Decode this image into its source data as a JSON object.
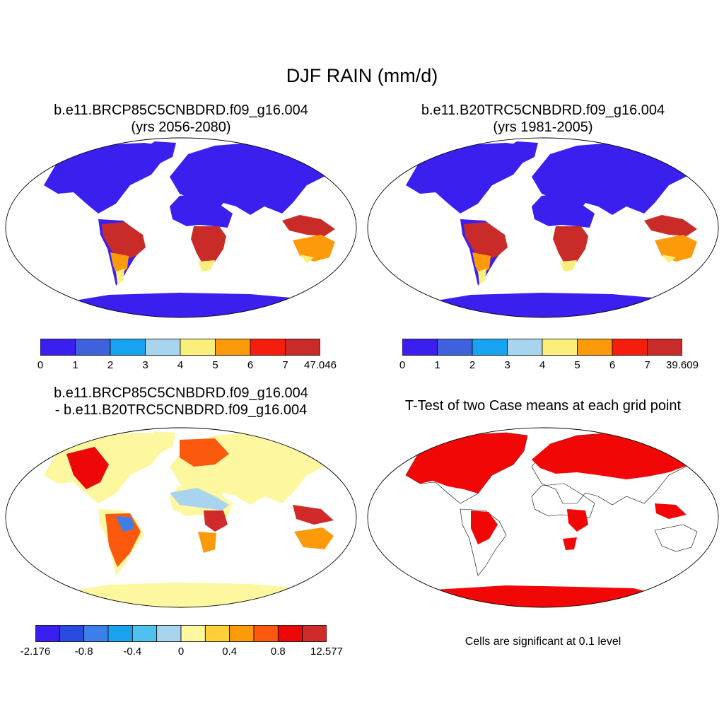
{
  "title": "DJF RAIN (mm/d)",
  "panels": [
    {
      "title_line1": "b.e11.BRCP85C5CNBDRD.f09_g16.004",
      "title_line2": "(yrs 2056-2080)",
      "colorbar": {
        "colors": [
          "#3b1fef",
          "#3f62dc",
          "#17a3ef",
          "#a8d4ee",
          "#fbef7b",
          "#fd9a0a",
          "#f71d0c",
          "#c92b28"
        ],
        "labels": [
          "0",
          "1",
          "2",
          "3",
          "4",
          "5",
          "6",
          "7",
          "47.046"
        ]
      }
    },
    {
      "title_line1": "b.e11.B20TRC5CNBDRD.f09_g16.004",
      "title_line2": "(yrs 1981-2005)",
      "colorbar": {
        "colors": [
          "#3b1fef",
          "#3f62dc",
          "#17a3ef",
          "#a8d4ee",
          "#fbef7b",
          "#fd9a0a",
          "#f71d0c",
          "#c92b28"
        ],
        "labels": [
          "0",
          "1",
          "2",
          "3",
          "4",
          "5",
          "6",
          "7",
          "39.609"
        ]
      }
    },
    {
      "title_line1": "b.e11.BRCP85C5CNBDRD.f09_g16.004",
      "title_line2": "- b.e11.B20TRC5CNBDRD.f09_g16.004",
      "colorbar": {
        "colors": [
          "#3b1fef",
          "#2a4be0",
          "#3d7fea",
          "#1aa2ee",
          "#4fc1f0",
          "#a8d4ee",
          "#fdf7a0",
          "#fdd03a",
          "#fd9a0a",
          "#fb5a0e",
          "#ee0707",
          "#d02a2a"
        ],
        "labels": [
          "-2.176",
          "-0.8",
          "-0.4",
          "0",
          "0.4",
          "0.8",
          "12.577"
        ]
      }
    },
    {
      "title_line1": "T-Test of two Case means at each grid point",
      "note": "Cells are significant at 0.1 level"
    }
  ],
  "map_fill": {
    "land_low": "#3b1fef",
    "wet": "#c92b28",
    "moist": "#fd9a0a",
    "mid": "#fbef7b",
    "diff_base": "#fdf7a0",
    "signif": "#f20707"
  }
}
